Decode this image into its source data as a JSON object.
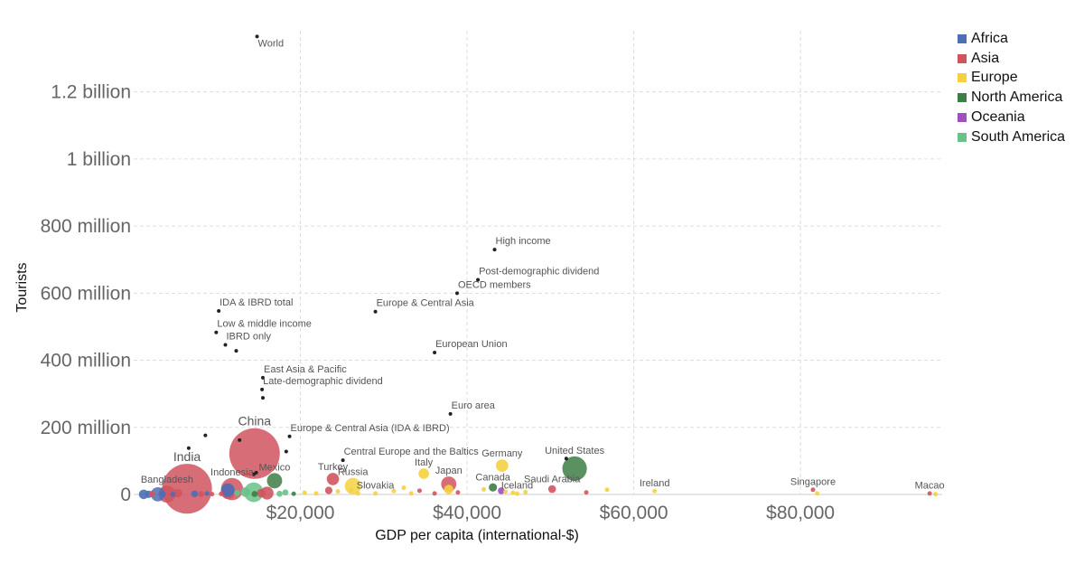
{
  "chart_data": {
    "type": "scatter",
    "xlabel": "GDP per capita (international-$)",
    "ylabel": "Tourists",
    "xlim": [
      0,
      97000
    ],
    "ylim": [
      0,
      1420000000
    ],
    "x_ticks": [
      {
        "value": 20000,
        "label": "$20,000"
      },
      {
        "value": 40000,
        "label": "$40,000"
      },
      {
        "value": 60000,
        "label": "$60,000"
      },
      {
        "value": 80000,
        "label": "$80,000"
      }
    ],
    "y_ticks": [
      {
        "value": 0,
        "label": "0"
      },
      {
        "value": 200000000,
        "label": "200 million"
      },
      {
        "value": 400000000,
        "label": "400 million"
      },
      {
        "value": 600000000,
        "label": "600 million"
      },
      {
        "value": 800000000,
        "label": "800 million"
      },
      {
        "value": 1000000000,
        "label": "1 billion"
      },
      {
        "value": 1200000000,
        "label": "1.2 billion"
      }
    ],
    "legend": [
      {
        "name": "Africa",
        "color": "#4c6fb5"
      },
      {
        "name": "Asia",
        "color": "#d0545f"
      },
      {
        "name": "Europe",
        "color": "#f5d13e"
      },
      {
        "name": "North America",
        "color": "#3e7d45"
      },
      {
        "name": "Oceania",
        "color": "#a04fc0"
      },
      {
        "name": "South America",
        "color": "#69c28a"
      }
    ],
    "aggregates": [
      {
        "label": "World",
        "x": 14800,
        "y": 1365000000
      },
      {
        "label": "High income",
        "x": 43300,
        "y": 730000000
      },
      {
        "label": "Post-demographic dividend",
        "x": 41300,
        "y": 640000000
      },
      {
        "label": "OECD members",
        "x": 38800,
        "y": 600000000
      },
      {
        "label": "IDA & IBRD total",
        "x": 10200,
        "y": 547000000
      },
      {
        "label": "Europe & Central Asia",
        "x": 29000,
        "y": 545000000
      },
      {
        "label": "Low & middle income",
        "x": 9900,
        "y": 483000000
      },
      {
        "label": "IBRD only",
        "x": 11000,
        "y": 446000000
      },
      {
        "label": "",
        "x": 12300,
        "y": 428000000
      },
      {
        "label": "European Union",
        "x": 36100,
        "y": 423000000
      },
      {
        "label": "East Asia & Pacific",
        "x": 15500,
        "y": 348000000
      },
      {
        "label": "Late-demographic dividend",
        "x": 15400,
        "y": 313000000
      },
      {
        "label": "",
        "x": 15500,
        "y": 288000000
      },
      {
        "label": "Euro area",
        "x": 38000,
        "y": 240000000
      },
      {
        "label": "Europe & Central Asia (IDA & IBRD)",
        "x": 18700,
        "y": 173000000
      },
      {
        "label": "",
        "x": 8600,
        "y": 176000000
      },
      {
        "label": "",
        "x": 12700,
        "y": 162000000
      },
      {
        "label": "",
        "x": 6600,
        "y": 138000000
      },
      {
        "label": "",
        "x": 18300,
        "y": 128000000
      },
      {
        "label": "Central Europe and the Baltics",
        "x": 25100,
        "y": 102000000
      },
      {
        "label": "",
        "x": 51900,
        "y": 107000000
      },
      {
        "label": "",
        "x": 14700,
        "y": 65000000
      },
      {
        "label": "",
        "x": 14400,
        "y": 60000000
      }
    ],
    "countries": [
      {
        "label": "China",
        "x": 14500,
        "y": 122000000,
        "region": "Asia",
        "pop": 1390000000
      },
      {
        "label": "India",
        "x": 6400,
        "y": 17000000,
        "region": "Asia",
        "pop": 1350000000
      },
      {
        "label": "United States",
        "x": 52900,
        "y": 77000000,
        "region": "North America",
        "pop": 327000000
      },
      {
        "label": "Germany",
        "x": 44200,
        "y": 86000000,
        "region": "Europe",
        "pop": 83000000
      },
      {
        "label": "Russia",
        "x": 26300,
        "y": 25000000,
        "region": "Europe",
        "pop": 145000000
      },
      {
        "label": "Turkey",
        "x": 23900,
        "y": 46000000,
        "region": "Asia",
        "pop": 82000000
      },
      {
        "label": "Indonesia",
        "x": 11800,
        "y": 16000000,
        "region": "Asia",
        "pop": 268000000
      },
      {
        "label": "Mexico",
        "x": 16900,
        "y": 41000000,
        "region": "North America",
        "pop": 126000000
      },
      {
        "label": "Bangladesh",
        "x": 4000,
        "y": 1000000,
        "region": "Asia",
        "pop": 161000000
      },
      {
        "label": "Italy",
        "x": 34800,
        "y": 62000000,
        "region": "Europe",
        "pop": 60000000
      },
      {
        "label": "Japan",
        "x": 37800,
        "y": 31000000,
        "region": "Asia",
        "pop": 126000000
      },
      {
        "label": "Canada",
        "x": 43100,
        "y": 21000000,
        "region": "North America",
        "pop": 37000000
      },
      {
        "label": "Saudi Arabia",
        "x": 50200,
        "y": 16000000,
        "region": "Asia",
        "pop": 33000000
      },
      {
        "label": "Slovakia",
        "x": 29000,
        "y": 3000000,
        "region": "Europe",
        "pop": 5400000
      },
      {
        "label": "Iceland",
        "x": 46000,
        "y": 2300000,
        "region": "Europe",
        "pop": 350000
      },
      {
        "label": "Ireland",
        "x": 62500,
        "y": 10000000,
        "region": "Europe",
        "pop": 4900000
      },
      {
        "label": "Singapore",
        "x": 81500,
        "y": 14000000,
        "region": "Asia",
        "pop": 5600000
      },
      {
        "label": "Macao",
        "x": 95500,
        "y": 3000000,
        "region": "Asia",
        "pop": 630000
      },
      {
        "label": "",
        "x": 96200,
        "y": 1000000,
        "region": "Europe",
        "pop": 600000
      },
      {
        "label": "",
        "x": 1200,
        "y": 300000,
        "region": "Africa",
        "pop": 50000000
      },
      {
        "label": "",
        "x": 1800,
        "y": 500000,
        "region": "Africa",
        "pop": 30000000
      },
      {
        "label": "",
        "x": 2200,
        "y": 1500000,
        "region": "Asia",
        "pop": 20000000
      },
      {
        "label": "",
        "x": 2900,
        "y": 400000,
        "region": "Africa",
        "pop": 110000000
      },
      {
        "label": "",
        "x": 3500,
        "y": 800000,
        "region": "Africa",
        "pop": 20000000
      },
      {
        "label": "",
        "x": 4700,
        "y": 300000,
        "region": "Africa",
        "pop": 15000000
      },
      {
        "label": "",
        "x": 5300,
        "y": 3800000,
        "region": "Asia",
        "pop": 40000000
      },
      {
        "label": "",
        "x": 7300,
        "y": 1800000,
        "region": "Africa",
        "pop": 25000000
      },
      {
        "label": "",
        "x": 8100,
        "y": 1500000,
        "region": "Asia",
        "pop": 20000000
      },
      {
        "label": "",
        "x": 8800,
        "y": 3000000,
        "region": "Africa",
        "pop": 12000000
      },
      {
        "label": "",
        "x": 9400,
        "y": 1000000,
        "region": "Asia",
        "pop": 8000000
      },
      {
        "label": "",
        "x": 10500,
        "y": 2000000,
        "region": "Asia",
        "pop": 12000000
      },
      {
        "label": "",
        "x": 11300,
        "y": 7000000,
        "region": "Asia",
        "pop": 106000000
      },
      {
        "label": "",
        "x": 11300,
        "y": 13000000,
        "region": "Africa",
        "pop": 100000000
      },
      {
        "label": "",
        "x": 12400,
        "y": 4500000,
        "region": "South America",
        "pop": 20000000
      },
      {
        "label": "",
        "x": 13400,
        "y": 7000000,
        "region": "South America",
        "pop": 50000000
      },
      {
        "label": "",
        "x": 14400,
        "y": 6500000,
        "region": "South America",
        "pop": 210000000
      },
      {
        "label": "",
        "x": 14500,
        "y": 1500000,
        "region": "North America",
        "pop": 20000000
      },
      {
        "label": "",
        "x": 15300,
        "y": 4000000,
        "region": "Asia",
        "pop": 40000000
      },
      {
        "label": "",
        "x": 16000,
        "y": 4000000,
        "region": "Asia",
        "pop": 90000000
      },
      {
        "label": "",
        "x": 17500,
        "y": 2000000,
        "region": "South America",
        "pop": 20000000
      },
      {
        "label": "",
        "x": 18200,
        "y": 6000000,
        "region": "South America",
        "pop": 20000000
      },
      {
        "label": "",
        "x": 19200,
        "y": 2000000,
        "region": "North America",
        "pop": 5000000
      },
      {
        "label": "",
        "x": 20500,
        "y": 5000000,
        "region": "Europe",
        "pop": 8000000
      },
      {
        "label": "",
        "x": 21900,
        "y": 3000000,
        "region": "Europe",
        "pop": 8000000
      },
      {
        "label": "",
        "x": 23400,
        "y": 12000000,
        "region": "Asia",
        "pop": 30000000
      },
      {
        "label": "",
        "x": 24500,
        "y": 9000000,
        "region": "Europe",
        "pop": 9000000
      },
      {
        "label": "",
        "x": 26100,
        "y": 14000000,
        "region": "Europe",
        "pop": 12000000
      },
      {
        "label": "",
        "x": 26900,
        "y": 3000000,
        "region": "Europe",
        "pop": 4000000
      },
      {
        "label": "",
        "x": 31200,
        "y": 10000000,
        "region": "Europe",
        "pop": 10000000
      },
      {
        "label": "",
        "x": 32400,
        "y": 20000000,
        "region": "Europe",
        "pop": 10000000
      },
      {
        "label": "",
        "x": 33300,
        "y": 3000000,
        "region": "Europe",
        "pop": 4000000
      },
      {
        "label": "",
        "x": 34300,
        "y": 11000000,
        "region": "Asia",
        "pop": 8000000
      },
      {
        "label": "",
        "x": 36100,
        "y": 3000000,
        "region": "Asia",
        "pop": 5000000
      },
      {
        "label": "",
        "x": 37800,
        "y": 15000000,
        "region": "Europe",
        "pop": 47000000
      },
      {
        "label": "",
        "x": 38900,
        "y": 6000000,
        "region": "Asia",
        "pop": 5000000
      },
      {
        "label": "",
        "x": 42000,
        "y": 15000000,
        "region": "Europe",
        "pop": 8000000
      },
      {
        "label": "",
        "x": 44100,
        "y": 11000000,
        "region": "Oceania",
        "pop": 25000000
      },
      {
        "label": "",
        "x": 44600,
        "y": 8000000,
        "region": "Europe",
        "pop": 5000000
      },
      {
        "label": "",
        "x": 45500,
        "y": 5000000,
        "region": "Europe",
        "pop": 5000000
      },
      {
        "label": "",
        "x": 47000,
        "y": 7000000,
        "region": "Europe",
        "pop": 5000000
      },
      {
        "label": "",
        "x": 54300,
        "y": 6000000,
        "region": "Asia",
        "pop": 4000000
      },
      {
        "label": "",
        "x": 56800,
        "y": 14000000,
        "region": "Europe",
        "pop": 8000000
      },
      {
        "label": "",
        "x": 82000,
        "y": 3000000,
        "region": "Europe",
        "pop": 600000
      }
    ]
  }
}
